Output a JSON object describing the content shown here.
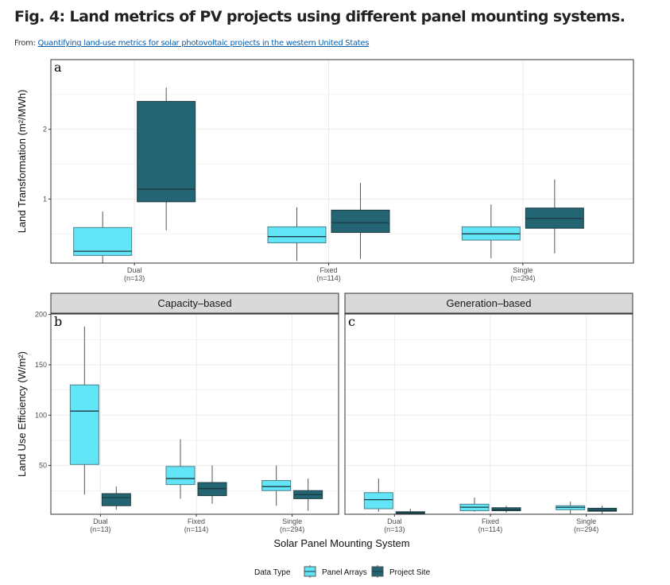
{
  "header": {
    "title": "Fig. 4: Land metrics of PV projects using different panel mounting systems.",
    "from_label": "From:",
    "source_link": "Quantifying land-use metrics for solar photovoltaic projects in the western United States"
  },
  "colors": {
    "panel_arrays": "#62e6f7",
    "project_site": "#236573",
    "strip_bg": "#d9d9d9",
    "grid": "#ebebeb"
  },
  "chart_data": [
    {
      "type": "boxplot",
      "panel_letter": "a",
      "ylabel": "Land Transformation  (m²/MWh)",
      "ylim": [
        0.08,
        3.0
      ],
      "yticks": [
        1,
        2
      ],
      "categories": [
        "Dual",
        "Fixed",
        "Single"
      ],
      "category_counts": [
        "(n=13)",
        "(n=114)",
        "(n=294)"
      ],
      "series": [
        {
          "name": "Panel Arrays",
          "boxes": [
            {
              "min": 0.08,
              "q1": 0.19,
              "median": 0.25,
              "q3": 0.59,
              "max": 0.82
            },
            {
              "min": 0.11,
              "q1": 0.37,
              "median": 0.46,
              "q3": 0.6,
              "max": 0.88
            },
            {
              "min": 0.15,
              "q1": 0.41,
              "median": 0.5,
              "q3": 0.6,
              "max": 0.92
            }
          ]
        },
        {
          "name": "Project Site",
          "boxes": [
            {
              "min": 0.55,
              "q1": 0.96,
              "median": 1.14,
              "q3": 2.4,
              "max": 2.6
            },
            {
              "min": 0.14,
              "q1": 0.52,
              "median": 0.66,
              "q3": 0.84,
              "max": 1.23
            },
            {
              "min": 0.22,
              "q1": 0.58,
              "median": 0.72,
              "q3": 0.87,
              "max": 1.28
            }
          ]
        }
      ]
    },
    {
      "type": "boxplot",
      "panel_letter": "b",
      "strip_label": "Capacity–based",
      "ylabel": "Land Use Efficiency  (W/m²)",
      "ylim": [
        1.5,
        200.5
      ],
      "yticks": [
        50,
        100,
        150,
        200
      ],
      "categories": [
        "Dual",
        "Fixed",
        "Single"
      ],
      "category_counts": [
        "(n=13)",
        "(n=114)",
        "(n=294)"
      ],
      "series": [
        {
          "name": "Panel Arrays",
          "boxes": [
            {
              "min": 21,
              "q1": 51,
              "median": 104,
              "q3": 130,
              "max": 188
            },
            {
              "min": 17,
              "q1": 31,
              "median": 37,
              "q3": 49,
              "max": 76
            },
            {
              "min": 10,
              "q1": 25,
              "median": 29,
              "q3": 35,
              "max": 50
            }
          ]
        },
        {
          "name": "Project Site",
          "boxes": [
            {
              "min": 6,
              "q1": 10,
              "median": 18,
              "q3": 22,
              "max": 29
            },
            {
              "min": 12,
              "q1": 20,
              "median": 27,
              "q3": 33,
              "max": 50
            },
            {
              "min": 5,
              "q1": 17,
              "median": 21,
              "q3": 25,
              "max": 37
            }
          ]
        }
      ]
    },
    {
      "type": "boxplot",
      "panel_letter": "c",
      "strip_label": "Generation–based",
      "ylim": [
        1.5,
        200.5
      ],
      "categories": [
        "Dual",
        "Fixed",
        "Single"
      ],
      "category_counts": [
        "(n=13)",
        "(n=114)",
        "(n=294)"
      ],
      "series": [
        {
          "name": "Panel Arrays",
          "boxes": [
            {
              "min": 4,
              "q1": 7,
              "median": 16,
              "q3": 23,
              "max": 37
            },
            {
              "min": 4,
              "q1": 5,
              "median": 8.5,
              "q3": 11.5,
              "max": 18
            },
            {
              "min": 2,
              "q1": 6,
              "median": 8.4,
              "q3": 10,
              "max": 14
            }
          ]
        },
        {
          "name": "Project Site",
          "boxes": [
            {
              "min": 1,
              "q1": 2,
              "median": 3,
              "q3": 4,
              "max": 7
            },
            {
              "min": 3,
              "q1": 5,
              "median": 6,
              "q3": 8,
              "max": 10
            },
            {
              "min": 2,
              "q1": 4.5,
              "median": 5.5,
              "q3": 7.5,
              "max": 10
            }
          ]
        }
      ]
    }
  ],
  "xlabel": "Solar Panel Mounting System",
  "legend": {
    "title": "Data Type",
    "items": [
      "Panel Arrays",
      "Project Site"
    ],
    "placement": "bottom"
  }
}
